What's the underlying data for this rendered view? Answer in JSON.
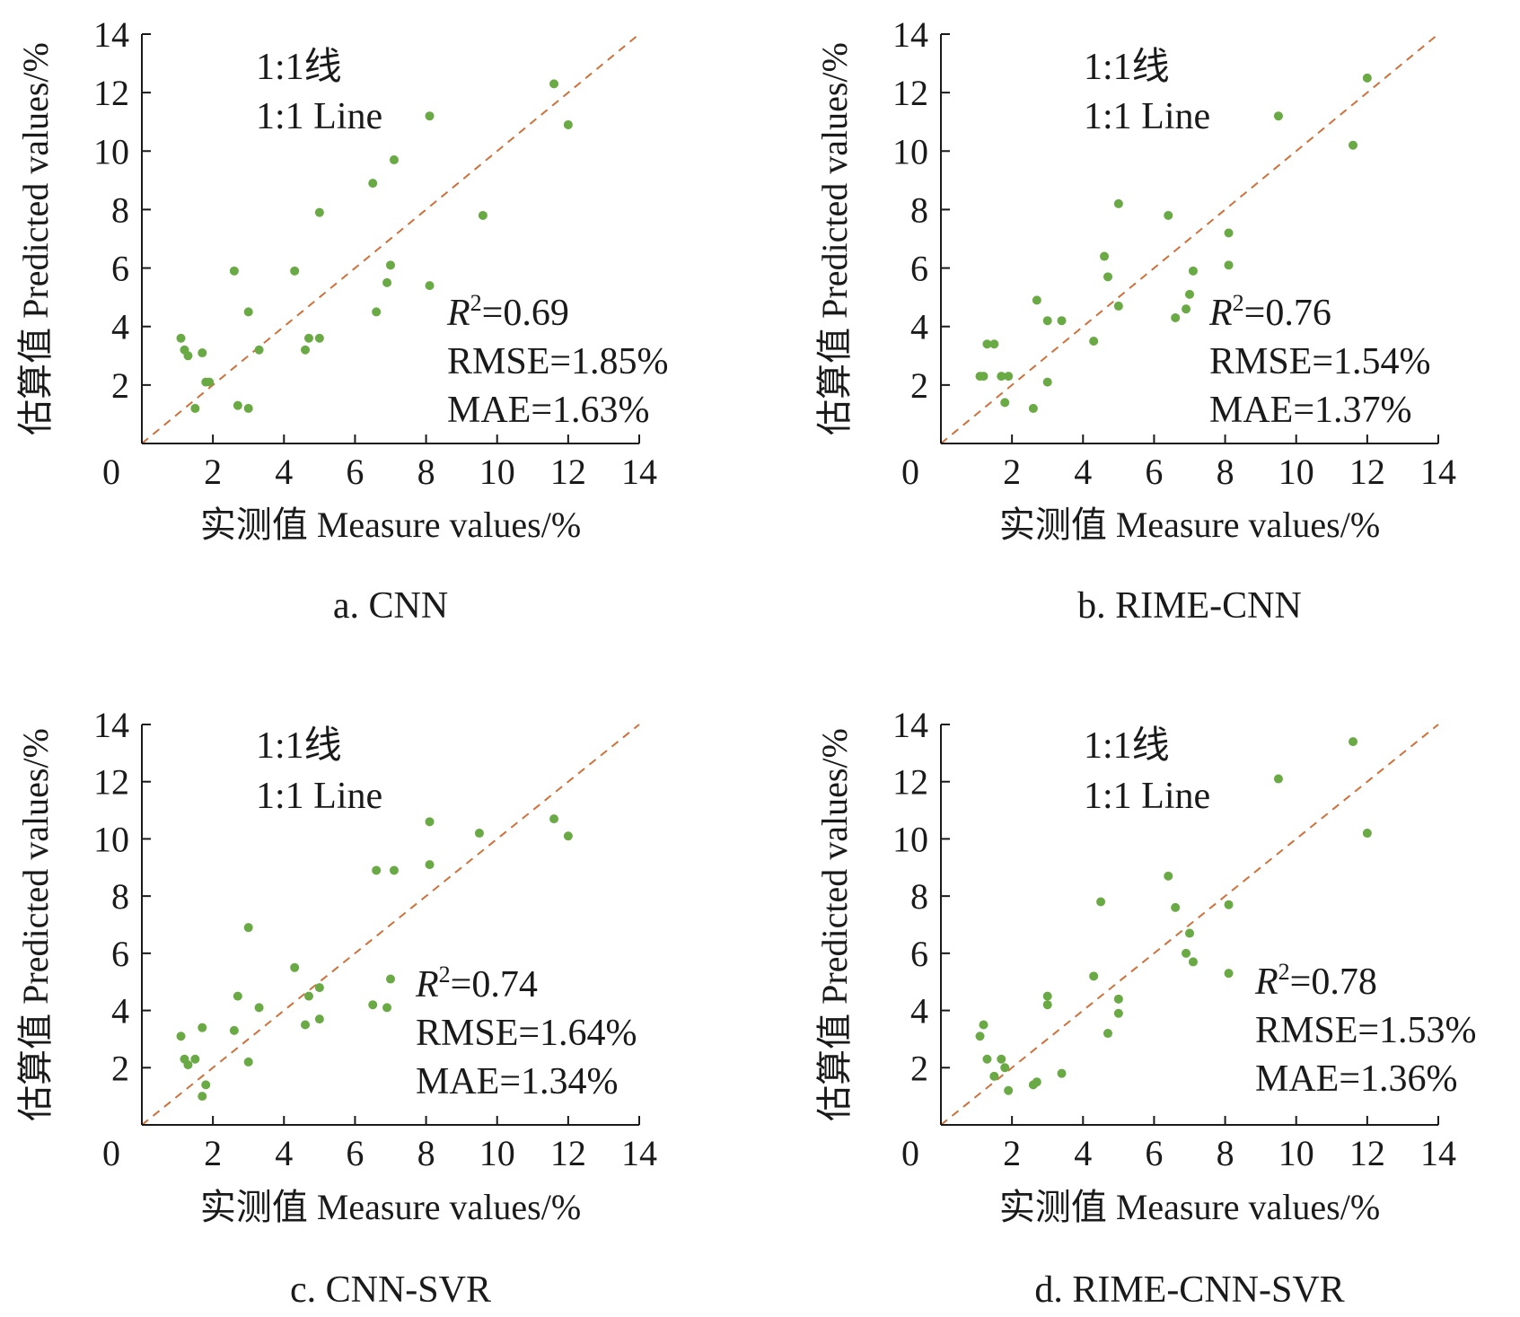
{
  "page": {
    "background": "#ffffff"
  },
  "style": {
    "point_color": "#6aaa45",
    "line_color": "#d0703a",
    "axis_color": "#1a1a1a"
  },
  "chart_data": [
    {
      "type": "scatter",
      "caption": "a. CNN",
      "xlabel": "实测值 Measure values/%",
      "ylabel": "估算值 Predicted values/%",
      "xlim": [
        0,
        14
      ],
      "ylim": [
        0,
        14
      ],
      "xticks": [
        "0",
        "2",
        "4",
        "6",
        "8",
        "10",
        "12",
        "14"
      ],
      "yticks": [
        "2",
        "4",
        "6",
        "8",
        "10",
        "12",
        "14"
      ],
      "reference_line": {
        "label_cn": "1:1线",
        "label_en": "1:1 Line"
      },
      "stats": {
        "r2_symbol": "R",
        "r2_sup": "2",
        "r2_value": "=0.69",
        "rmse": "RMSE=1.85%",
        "mae": "MAE=1.63%"
      },
      "points": [
        {
          "x": 1.1,
          "y": 3.6
        },
        {
          "x": 1.2,
          "y": 3.2
        },
        {
          "x": 1.3,
          "y": 3.0
        },
        {
          "x": 1.5,
          "y": 1.2
        },
        {
          "x": 1.7,
          "y": 3.1
        },
        {
          "x": 1.8,
          "y": 2.1
        },
        {
          "x": 1.9,
          "y": 2.1
        },
        {
          "x": 2.6,
          "y": 5.9
        },
        {
          "x": 2.7,
          "y": 1.3
        },
        {
          "x": 3.0,
          "y": 4.5
        },
        {
          "x": 3.0,
          "y": 1.2
        },
        {
          "x": 3.3,
          "y": 3.2
        },
        {
          "x": 4.3,
          "y": 5.9
        },
        {
          "x": 4.6,
          "y": 3.2
        },
        {
          "x": 4.7,
          "y": 3.6
        },
        {
          "x": 5.0,
          "y": 3.6
        },
        {
          "x": 5.0,
          "y": 7.9
        },
        {
          "x": 6.5,
          "y": 8.9
        },
        {
          "x": 6.6,
          "y": 4.5
        },
        {
          "x": 6.9,
          "y": 5.5
        },
        {
          "x": 7.0,
          "y": 6.1
        },
        {
          "x": 7.1,
          "y": 9.7
        },
        {
          "x": 8.1,
          "y": 11.2
        },
        {
          "x": 8.1,
          "y": 5.4
        },
        {
          "x": 9.6,
          "y": 7.8
        },
        {
          "x": 11.6,
          "y": 12.3
        },
        {
          "x": 12.0,
          "y": 10.9
        }
      ]
    },
    {
      "type": "scatter",
      "caption": "b. RIME-CNN",
      "xlabel": "实测值 Measure values/%",
      "ylabel": "估算值 Predicted values/%",
      "xlim": [
        0,
        14
      ],
      "ylim": [
        0,
        14
      ],
      "xticks": [
        "0",
        "2",
        "4",
        "6",
        "8",
        "10",
        "12",
        "14"
      ],
      "yticks": [
        "2",
        "4",
        "6",
        "8",
        "10",
        "12",
        "14"
      ],
      "reference_line": {
        "label_cn": "1:1线",
        "label_en": "1:1 Line"
      },
      "stats": {
        "r2_symbol": "R",
        "r2_sup": "2",
        "r2_value": "=0.76",
        "rmse": "RMSE=1.54%",
        "mae": "MAE=1.37%"
      },
      "points": [
        {
          "x": 1.1,
          "y": 2.3
        },
        {
          "x": 1.2,
          "y": 2.3
        },
        {
          "x": 1.3,
          "y": 3.4
        },
        {
          "x": 1.5,
          "y": 3.4
        },
        {
          "x": 1.7,
          "y": 2.3
        },
        {
          "x": 1.8,
          "y": 1.4
        },
        {
          "x": 1.9,
          "y": 2.3
        },
        {
          "x": 2.6,
          "y": 1.2
        },
        {
          "x": 2.7,
          "y": 4.9
        },
        {
          "x": 3.0,
          "y": 4.2
        },
        {
          "x": 3.0,
          "y": 2.1
        },
        {
          "x": 3.4,
          "y": 4.2
        },
        {
          "x": 4.3,
          "y": 3.5
        },
        {
          "x": 4.6,
          "y": 6.4
        },
        {
          "x": 4.7,
          "y": 5.7
        },
        {
          "x": 5.0,
          "y": 4.7
        },
        {
          "x": 5.0,
          "y": 8.2
        },
        {
          "x": 6.4,
          "y": 7.8
        },
        {
          "x": 6.6,
          "y": 4.3
        },
        {
          "x": 6.9,
          "y": 4.6
        },
        {
          "x": 7.0,
          "y": 5.1
        },
        {
          "x": 7.1,
          "y": 5.9
        },
        {
          "x": 8.1,
          "y": 7.2
        },
        {
          "x": 8.1,
          "y": 6.1
        },
        {
          "x": 9.5,
          "y": 11.2
        },
        {
          "x": 11.6,
          "y": 10.2
        },
        {
          "x": 12.0,
          "y": 12.5
        }
      ]
    },
    {
      "type": "scatter",
      "caption": "c. CNN-SVR",
      "xlabel": "实测值 Measure values/%",
      "ylabel": "估算值 Predicted values/%",
      "xlim": [
        0,
        14
      ],
      "ylim": [
        0,
        14
      ],
      "xticks": [
        "0",
        "2",
        "4",
        "6",
        "8",
        "10",
        "12",
        "14"
      ],
      "yticks": [
        "2",
        "4",
        "6",
        "8",
        "10",
        "12",
        "14"
      ],
      "reference_line": {
        "label_cn": "1:1线",
        "label_en": "1:1 Line"
      },
      "stats": {
        "r2_symbol": "R",
        "r2_sup": "2",
        "r2_value": "=0.74",
        "rmse": "RMSE=1.64%",
        "mae": "MAE=1.34%"
      },
      "points": [
        {
          "x": 1.1,
          "y": 3.1
        },
        {
          "x": 1.2,
          "y": 2.3
        },
        {
          "x": 1.3,
          "y": 2.1
        },
        {
          "x": 1.5,
          "y": 2.3
        },
        {
          "x": 1.7,
          "y": 3.4
        },
        {
          "x": 1.7,
          "y": 1.0
        },
        {
          "x": 1.8,
          "y": 1.4
        },
        {
          "x": 2.6,
          "y": 3.3
        },
        {
          "x": 2.7,
          "y": 4.5
        },
        {
          "x": 3.0,
          "y": 6.9
        },
        {
          "x": 3.0,
          "y": 2.2
        },
        {
          "x": 3.3,
          "y": 4.1
        },
        {
          "x": 4.3,
          "y": 5.5
        },
        {
          "x": 4.6,
          "y": 3.5
        },
        {
          "x": 4.7,
          "y": 4.5
        },
        {
          "x": 5.0,
          "y": 3.7
        },
        {
          "x": 5.0,
          "y": 4.8
        },
        {
          "x": 6.5,
          "y": 4.2
        },
        {
          "x": 6.6,
          "y": 8.9
        },
        {
          "x": 6.9,
          "y": 4.1
        },
        {
          "x": 7.0,
          "y": 5.1
        },
        {
          "x": 7.1,
          "y": 8.9
        },
        {
          "x": 8.1,
          "y": 10.6
        },
        {
          "x": 8.1,
          "y": 9.1
        },
        {
          "x": 9.5,
          "y": 10.2
        },
        {
          "x": 11.6,
          "y": 10.7
        },
        {
          "x": 12.0,
          "y": 10.1
        }
      ]
    },
    {
      "type": "scatter",
      "caption": "d. RIME-CNN-SVR",
      "xlabel": "实测值 Measure values/%",
      "ylabel": "估算值 Predicted values/%",
      "xlim": [
        0,
        14
      ],
      "ylim": [
        0,
        14
      ],
      "xticks": [
        "0",
        "2",
        "4",
        "6",
        "8",
        "10",
        "12",
        "14"
      ],
      "yticks": [
        "2",
        "4",
        "6",
        "8",
        "10",
        "12",
        "14"
      ],
      "reference_line": {
        "label_cn": "1:1线",
        "label_en": "1:1 Line"
      },
      "stats": {
        "r2_symbol": "R",
        "r2_sup": "2",
        "r2_value": "=0.78",
        "rmse": "RMSE=1.53%",
        "mae": "MAE=1.36%"
      },
      "points": [
        {
          "x": 1.1,
          "y": 3.1
        },
        {
          "x": 1.2,
          "y": 3.5
        },
        {
          "x": 1.3,
          "y": 2.3
        },
        {
          "x": 1.5,
          "y": 1.7
        },
        {
          "x": 1.7,
          "y": 2.3
        },
        {
          "x": 1.8,
          "y": 2.0
        },
        {
          "x": 1.9,
          "y": 1.2
        },
        {
          "x": 2.6,
          "y": 1.4
        },
        {
          "x": 2.7,
          "y": 1.5
        },
        {
          "x": 3.0,
          "y": 4.5
        },
        {
          "x": 3.0,
          "y": 4.2
        },
        {
          "x": 3.4,
          "y": 1.8
        },
        {
          "x": 4.3,
          "y": 5.2
        },
        {
          "x": 4.5,
          "y": 7.8
        },
        {
          "x": 4.7,
          "y": 3.2
        },
        {
          "x": 5.0,
          "y": 4.4
        },
        {
          "x": 5.0,
          "y": 3.9
        },
        {
          "x": 6.4,
          "y": 8.7
        },
        {
          "x": 6.6,
          "y": 7.6
        },
        {
          "x": 6.9,
          "y": 6.0
        },
        {
          "x": 7.0,
          "y": 6.7
        },
        {
          "x": 7.1,
          "y": 5.7
        },
        {
          "x": 8.1,
          "y": 7.7
        },
        {
          "x": 8.1,
          "y": 5.3
        },
        {
          "x": 9.5,
          "y": 12.1
        },
        {
          "x": 11.6,
          "y": 13.4
        },
        {
          "x": 12.0,
          "y": 10.2
        }
      ]
    }
  ]
}
